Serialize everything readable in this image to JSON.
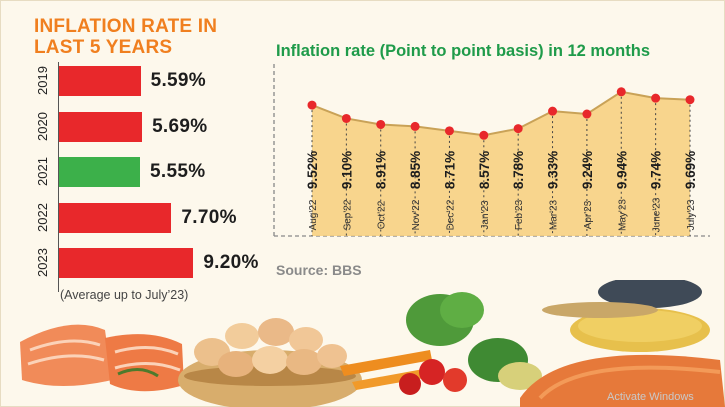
{
  "left_panel": {
    "title_line1": "INFLATION RATE IN",
    "title_line2": "LAST 5 YEARS",
    "note": "(Average up to July’23)",
    "bar_colors": {
      "default": "#e8282b",
      "highlight": "#3cb04a"
    },
    "bars": [
      {
        "year": "2019",
        "value": 5.59,
        "label": "5.59%",
        "highlight": false
      },
      {
        "year": "2020",
        "value": 5.69,
        "label": "5.69%",
        "highlight": false
      },
      {
        "year": "2021",
        "value": 5.55,
        "label": "5.55%",
        "highlight": true
      },
      {
        "year": "2022",
        "value": 7.7,
        "label": "7.70%",
        "highlight": false
      },
      {
        "year": "2023",
        "value": 9.2,
        "label": "9.20%",
        "highlight": false
      }
    ]
  },
  "right_panel": {
    "title": "Inflation rate (Point to point basis) in 12 months",
    "source": "Source: BBS",
    "colors": {
      "area": "#f7cf7d",
      "line": "#c9a257",
      "marker": "#e8282b",
      "dash": "#888888"
    }
  },
  "footer": {
    "watermark": "Activate Windows",
    "images": [
      "salmon-fillets",
      "eggs-basket",
      "vegetables",
      "lentils-spoon"
    ]
  },
  "chart_data": [
    {
      "type": "bar",
      "orientation": "horizontal",
      "title": "INFLATION RATE IN LAST 5 YEARS",
      "categories": [
        "2019",
        "2020",
        "2021",
        "2022",
        "2023"
      ],
      "values": [
        5.59,
        5.69,
        5.55,
        7.7,
        9.2
      ],
      "data_labels": [
        "5.59%",
        "5.69%",
        "5.55%",
        "7.70%",
        "9.20%"
      ],
      "note": "(Average up to July’23)",
      "xlim": [
        0,
        10
      ],
      "grid": false
    },
    {
      "type": "area",
      "title": "Inflation rate (Point to point basis) in 12 months",
      "categories": [
        "Aug'22",
        "Sep'22",
        "Oct'22",
        "Nov'22",
        "Dec'22",
        "Jan'23",
        "Feb'23",
        "Mar'23",
        "Apr'23",
        "May'23",
        "June'23",
        "July'23"
      ],
      "values": [
        9.52,
        9.1,
        8.91,
        8.85,
        8.71,
        8.57,
        8.78,
        9.33,
        9.24,
        9.94,
        9.74,
        9.69
      ],
      "data_labels": [
        "9.52%",
        "9.10%",
        "8.91%",
        "8.85%",
        "8.71%",
        "8.57%",
        "8.78%",
        "9.33%",
        "9.24%",
        "9.94%",
        "9.74%",
        "9.69%"
      ],
      "ylim": [
        5.5,
        10.5
      ],
      "grid": false,
      "source": "Source: BBS"
    }
  ]
}
